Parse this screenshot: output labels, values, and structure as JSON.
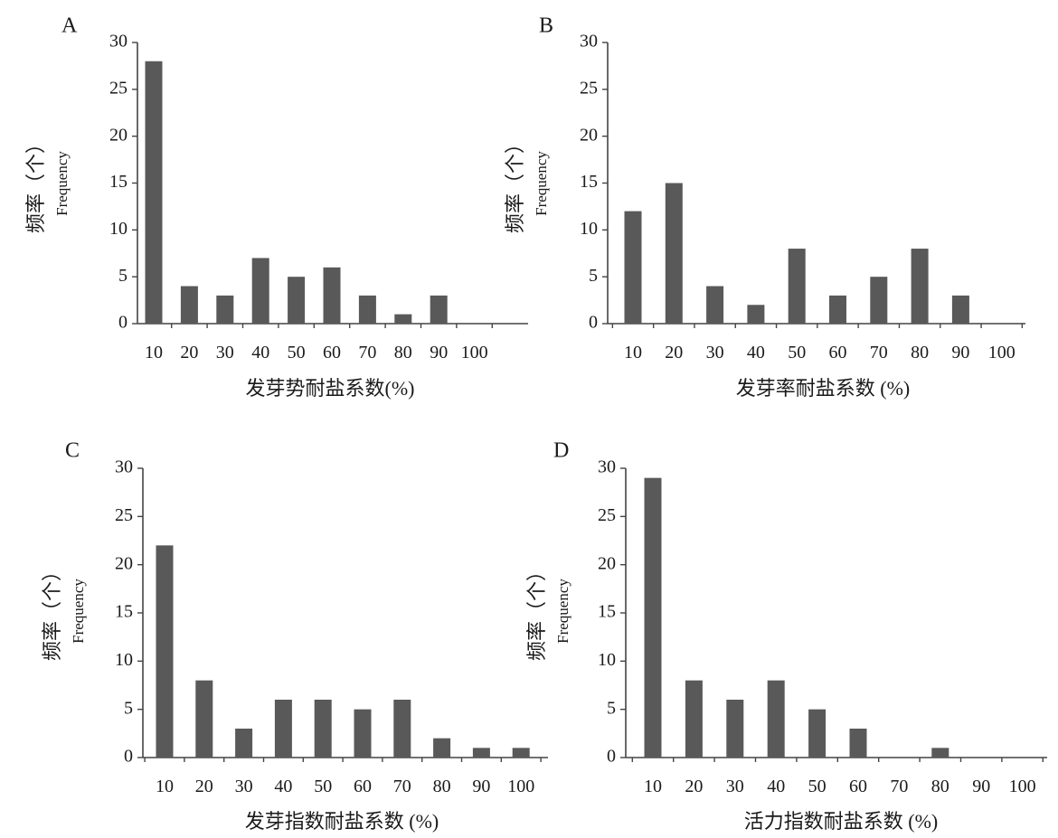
{
  "figure": {
    "y_axis_label_zh": "频率（个）",
    "y_axis_label_en": "Frequency",
    "bar_color": "#595959"
  },
  "chart_data": [
    {
      "type": "bar",
      "panel": "A",
      "categories": [
        "10",
        "20",
        "30",
        "40",
        "50",
        "60",
        "70",
        "80",
        "90",
        "100"
      ],
      "values": [
        28,
        4,
        3,
        7,
        5,
        6,
        3,
        1,
        3,
        0
      ],
      "xlabel": "发芽势耐盐系数(%)",
      "ylabel": "频率（个）Frequency",
      "yticks": [
        "0",
        "5",
        "10",
        "15",
        "20",
        "25",
        "30"
      ],
      "ylim": [
        0,
        30
      ],
      "grid": false
    },
    {
      "type": "bar",
      "panel": "B",
      "categories": [
        "10",
        "20",
        "30",
        "40",
        "50",
        "60",
        "70",
        "80",
        "90",
        "100"
      ],
      "values": [
        12,
        15,
        4,
        2,
        8,
        3,
        5,
        8,
        3,
        0
      ],
      "xlabel": "发芽率耐盐系数 (%)",
      "ylabel": "频率（个）Frequency",
      "yticks": [
        "0",
        "5",
        "10",
        "15",
        "20",
        "25",
        "30"
      ],
      "ylim": [
        0,
        30
      ],
      "grid": false
    },
    {
      "type": "bar",
      "panel": "C",
      "categories": [
        "10",
        "20",
        "30",
        "40",
        "50",
        "60",
        "70",
        "80",
        "90",
        "100"
      ],
      "values": [
        22,
        8,
        3,
        6,
        6,
        5,
        6,
        2,
        1,
        1
      ],
      "xlabel": "发芽指数耐盐系数 (%)",
      "ylabel": "频率（个）Frequency",
      "yticks": [
        "0",
        "5",
        "10",
        "15",
        "20",
        "25",
        "30"
      ],
      "ylim": [
        0,
        30
      ],
      "grid": false
    },
    {
      "type": "bar",
      "panel": "D",
      "categories": [
        "10",
        "20",
        "30",
        "40",
        "50",
        "60",
        "70",
        "80",
        "90",
        "100"
      ],
      "values": [
        29,
        8,
        6,
        8,
        5,
        3,
        0,
        1,
        0,
        0
      ],
      "xlabel": "活力指数耐盐系数 (%)",
      "ylabel": "频率（个）Frequency",
      "yticks": [
        "0",
        "5",
        "10",
        "15",
        "20",
        "25",
        "30"
      ],
      "ylim": [
        0,
        30
      ],
      "grid": false
    }
  ]
}
